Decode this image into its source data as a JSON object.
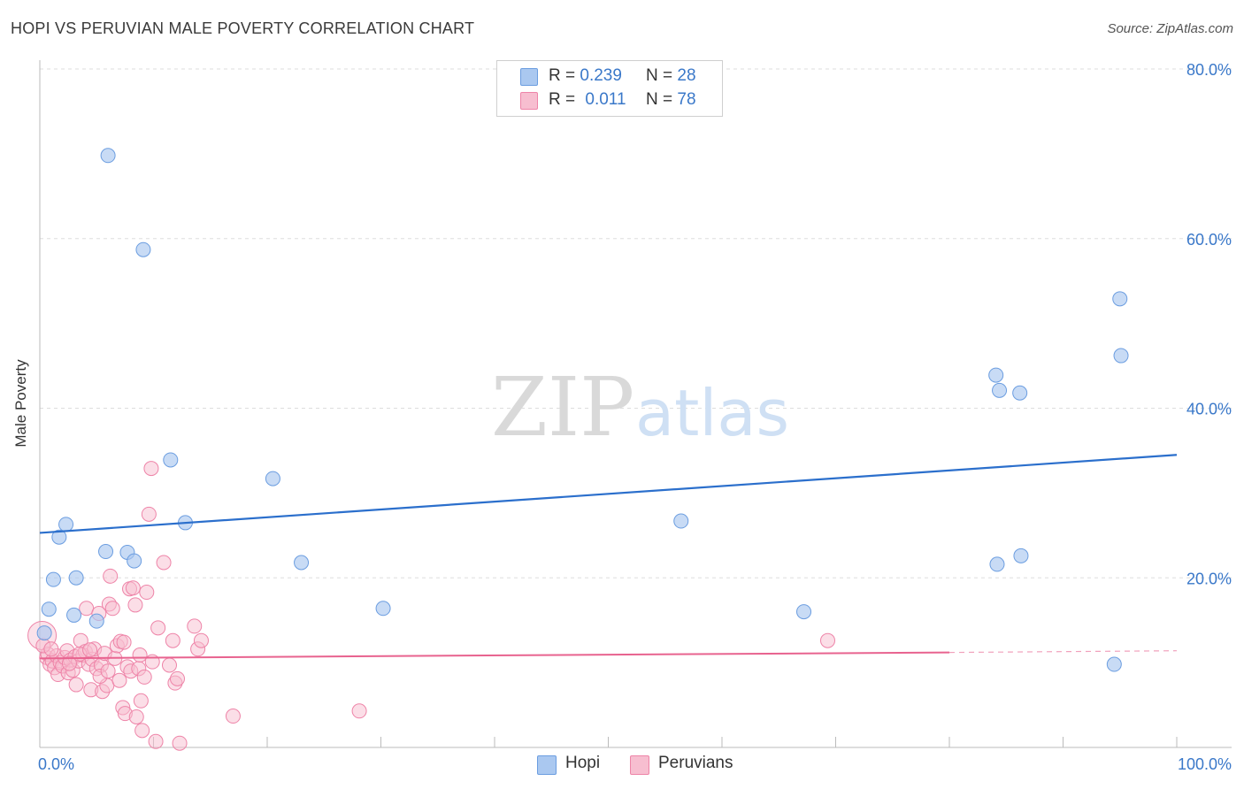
{
  "header": {
    "title": "HOPI VS PERUVIAN MALE POVERTY CORRELATION CHART",
    "source": "Source: ZipAtlas.com"
  },
  "colors": {
    "hopi_fill": "#aac8f0",
    "hopi_stroke": "#6b9de0",
    "hopi_line": "#2b6fcc",
    "peru_fill": "#f7bed0",
    "peru_stroke": "#ee84a8",
    "peru_line": "#e8638f",
    "axis_text": "#3a78c9",
    "grid": "#dddddd"
  },
  "legend_top": {
    "hopi": {
      "r_label": "R =",
      "r_value": "0.239",
      "n_label": "N =",
      "n_value": "28"
    },
    "peru": {
      "r_label": "R =",
      "r_value": "0.011",
      "n_label": "N =",
      "n_value": "78"
    }
  },
  "legend_bottom": {
    "hopi": "Hopi",
    "peru": "Peruvians"
  },
  "watermark": {
    "zip": "ZIP",
    "atlas": "atlas"
  },
  "chart_data": {
    "type": "scatter",
    "title": "HOPI VS PERUVIAN MALE POVERTY CORRELATION CHART",
    "xlabel": "",
    "ylabel": "Male Poverty",
    "xlim": [
      0,
      100
    ],
    "ylim": [
      0,
      80
    ],
    "x_tick_labels": [
      "0.0%",
      "100.0%"
    ],
    "y_ticks": [
      20,
      40,
      60,
      80
    ],
    "y_tick_labels": [
      "20.0%",
      "40.0%",
      "60.0%",
      "80.0%"
    ],
    "grid": true,
    "legend": "top-center",
    "series": [
      {
        "name": "Hopi",
        "r": 0.239,
        "n": 28,
        "trend": {
          "x0": 0,
          "y0": 25.3,
          "x1": 100,
          "y1": 34.5
        },
        "points": [
          [
            6.0,
            69.8
          ],
          [
            9.1,
            58.7
          ],
          [
            11.5,
            33.9
          ],
          [
            20.5,
            31.7
          ],
          [
            2.3,
            26.3
          ],
          [
            12.8,
            26.5
          ],
          [
            1.7,
            24.8
          ],
          [
            5.8,
            23.1
          ],
          [
            7.7,
            23.0
          ],
          [
            8.3,
            22.0
          ],
          [
            23.0,
            21.8
          ],
          [
            1.2,
            19.8
          ],
          [
            3.2,
            20.0
          ],
          [
            0.8,
            16.3
          ],
          [
            3.0,
            15.6
          ],
          [
            5.0,
            14.9
          ],
          [
            30.2,
            16.4
          ],
          [
            0.4,
            13.5
          ],
          [
            56.4,
            26.7
          ],
          [
            67.2,
            16.0
          ],
          [
            84.1,
            43.9
          ],
          [
            84.4,
            42.1
          ],
          [
            86.2,
            41.8
          ],
          [
            95.0,
            52.9
          ],
          [
            95.1,
            46.2
          ],
          [
            84.2,
            21.6
          ],
          [
            86.3,
            22.6
          ],
          [
            94.5,
            9.8
          ]
        ]
      },
      {
        "name": "Peruvians",
        "r": 0.011,
        "n": 78,
        "trend": {
          "x0": 0,
          "y0": 10.5,
          "x1": 80,
          "y1": 11.2
        },
        "trend_dashed": {
          "x0": 80,
          "y0": 11.2,
          "x1": 100,
          "y1": 11.4
        },
        "points": [
          [
            0.2,
            13.2
          ],
          [
            0.6,
            10.6
          ],
          [
            0.7,
            11.0
          ],
          [
            0.9,
            9.8
          ],
          [
            1.1,
            10.2
          ],
          [
            1.3,
            9.4
          ],
          [
            1.5,
            10.8
          ],
          [
            1.6,
            8.6
          ],
          [
            1.8,
            10.0
          ],
          [
            2.0,
            9.6
          ],
          [
            2.2,
            10.6
          ],
          [
            2.4,
            11.4
          ],
          [
            2.5,
            8.8
          ],
          [
            2.7,
            10.3
          ],
          [
            2.9,
            9.1
          ],
          [
            3.1,
            10.7
          ],
          [
            3.2,
            7.4
          ],
          [
            3.4,
            10.2
          ],
          [
            3.6,
            12.6
          ],
          [
            3.8,
            10.9
          ],
          [
            4.0,
            11.3
          ],
          [
            4.1,
            16.4
          ],
          [
            4.3,
            9.8
          ],
          [
            4.5,
            6.8
          ],
          [
            4.6,
            10.4
          ],
          [
            4.8,
            11.6
          ],
          [
            5.0,
            9.3
          ],
          [
            5.2,
            15.8
          ],
          [
            5.4,
            9.7
          ],
          [
            5.5,
            6.6
          ],
          [
            5.7,
            11.1
          ],
          [
            5.9,
            7.3
          ],
          [
            6.1,
            16.9
          ],
          [
            6.2,
            20.2
          ],
          [
            6.4,
            16.4
          ],
          [
            6.6,
            10.5
          ],
          [
            6.8,
            12.0
          ],
          [
            7.0,
            7.9
          ],
          [
            7.1,
            12.5
          ],
          [
            7.3,
            4.7
          ],
          [
            7.5,
            4.0
          ],
          [
            7.7,
            9.5
          ],
          [
            7.9,
            18.7
          ],
          [
            8.0,
            9.0
          ],
          [
            8.2,
            18.8
          ],
          [
            8.4,
            16.8
          ],
          [
            8.5,
            3.6
          ],
          [
            8.7,
            9.3
          ],
          [
            8.9,
            5.5
          ],
          [
            9.0,
            2.0
          ],
          [
            9.2,
            8.3
          ],
          [
            9.4,
            18.3
          ],
          [
            9.6,
            27.5
          ],
          [
            9.8,
            32.9
          ],
          [
            9.9,
            10.1
          ],
          [
            10.2,
            0.7
          ],
          [
            10.4,
            14.1
          ],
          [
            10.9,
            21.8
          ],
          [
            11.4,
            9.7
          ],
          [
            11.7,
            12.6
          ],
          [
            11.9,
            7.6
          ],
          [
            12.1,
            8.1
          ],
          [
            12.3,
            0.5
          ],
          [
            13.6,
            14.3
          ],
          [
            13.9,
            11.6
          ],
          [
            14.2,
            12.6
          ],
          [
            17.0,
            3.7
          ],
          [
            28.1,
            4.3
          ],
          [
            69.3,
            12.6
          ],
          [
            0.3,
            12.0
          ],
          [
            1.0,
            11.6
          ],
          [
            2.6,
            9.9
          ],
          [
            3.5,
            11.0
          ],
          [
            4.4,
            11.5
          ],
          [
            5.3,
            8.4
          ],
          [
            6.0,
            9.0
          ],
          [
            7.4,
            12.4
          ],
          [
            8.8,
            10.9
          ]
        ]
      }
    ]
  }
}
